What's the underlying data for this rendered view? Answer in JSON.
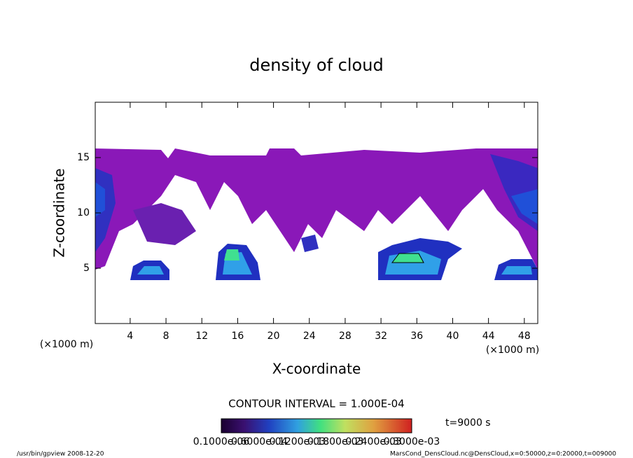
{
  "chart_data": {
    "type": "contour",
    "title": "density of cloud",
    "x_label": "X-coordinate",
    "y_label": "Z-coordinate",
    "x_unit": "(×1000 m)",
    "y_unit": "(×1000 m)",
    "xlim": [
      0.1,
      49.5
    ],
    "ylim": [
      0,
      20
    ],
    "xticks": [
      4,
      8,
      12,
      16,
      20,
      24,
      28,
      32,
      36,
      40,
      44,
      48
    ],
    "yticks": [
      5,
      10,
      15
    ],
    "contour_interval": "CONTOUR INTERVAL = 1.000E-04",
    "time_label": "t=9000 s",
    "colorbar_labels": [
      "0.1000e-06",
      "0.6000e-04",
      "0.1200e-03",
      "0.1800e-03",
      "0.2400e-03",
      "0.3000e-03"
    ],
    "footer_left": "/usr/bin/gpview  2008-12-20",
    "footer_right": "MarsCond_DensCloud.nc@DensCloud,x=0:50000,z=0:20000,t=009000"
  }
}
